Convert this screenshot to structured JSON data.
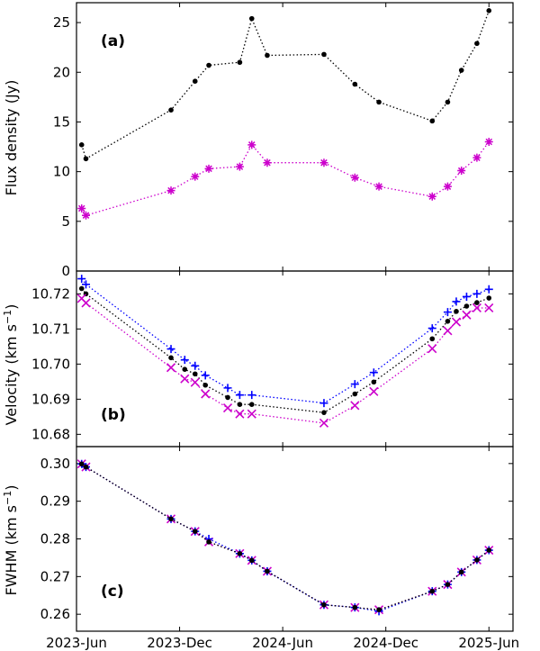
{
  "chart_data": [
    {
      "panel": "a",
      "type": "line",
      "tag": "(a)",
      "ylabel": "Flux density (Jy)",
      "ylim": [
        0,
        27
      ],
      "yticks": [
        0,
        5,
        10,
        15,
        20,
        25
      ],
      "ytick_labels": [
        "0",
        "5",
        "10",
        "15",
        "20",
        "25"
      ],
      "x_month": [
        0.3,
        0.55,
        5.5,
        6.9,
        7.7,
        9.5,
        10.2,
        11.1,
        14.4,
        16.2,
        17.6,
        20.7,
        21.6,
        22.4,
        23.3,
        24.0
      ],
      "series": [
        {
          "name": "black",
          "marker": "dot",
          "color": "#000000",
          "values": [
            12.7,
            11.3,
            16.2,
            19.1,
            20.7,
            21.0,
            25.4,
            21.7,
            21.8,
            18.8,
            17.0,
            15.1,
            17.0,
            20.2,
            22.9,
            26.2
          ]
        },
        {
          "name": "magenta",
          "marker": "star",
          "color": "#cc00cc",
          "values": [
            6.3,
            5.6,
            8.1,
            9.5,
            10.3,
            10.5,
            12.7,
            10.9,
            10.9,
            9.4,
            8.5,
            7.5,
            8.5,
            10.1,
            11.4,
            13.0
          ]
        }
      ]
    },
    {
      "panel": "b",
      "type": "line",
      "tag": "(b)",
      "ylabel": "Velocity (km s",
      "ylabel_sup": "−1",
      "ylabel_end": ")",
      "ylim": [
        10.6765,
        10.7265
      ],
      "yticks": [
        10.68,
        10.69,
        10.7,
        10.71,
        10.72
      ],
      "ytick_labels": [
        "10.68",
        "10.69",
        "10.70",
        "10.71",
        "10.72"
      ],
      "x_month": [
        0.3,
        0.55,
        5.5,
        6.3,
        6.9,
        7.5,
        8.8,
        9.5,
        10.2,
        14.4,
        16.2,
        17.3,
        20.7,
        21.6,
        22.1,
        22.7,
        23.3,
        24.0
      ],
      "series": [
        {
          "name": "blue",
          "marker": "plus",
          "color": "#0000ff",
          "values": [
            10.7243,
            10.7227,
            10.7043,
            10.7012,
            10.6995,
            10.6968,
            10.6932,
            10.6912,
            10.6912,
            10.6889,
            10.6943,
            10.6976,
            10.7102,
            10.7148,
            10.7178,
            10.7192,
            10.72,
            10.7213
          ]
        },
        {
          "name": "black",
          "marker": "dot",
          "color": "#000000",
          "values": [
            10.7215,
            10.72,
            10.7018,
            10.6985,
            10.6972,
            10.694,
            10.6905,
            10.6885,
            10.6885,
            10.6862,
            10.6915,
            10.6949,
            10.7072,
            10.7122,
            10.715,
            10.7165,
            10.7175,
            10.7188
          ]
        },
        {
          "name": "magenta",
          "marker": "cross",
          "color": "#cc00cc",
          "values": [
            10.7187,
            10.7174,
            10.699,
            10.6958,
            10.6948,
            10.6915,
            10.6875,
            10.6858,
            10.6858,
            10.6832,
            10.6882,
            10.6922,
            10.7044,
            10.7095,
            10.712,
            10.714,
            10.716,
            10.716
          ]
        }
      ]
    },
    {
      "panel": "c",
      "type": "line",
      "tag": "(c)",
      "ylabel": "FWHM (km s",
      "ylabel_sup": "−1",
      "ylabel_end": ")",
      "xlabel": "",
      "xlim": [
        0,
        25.4
      ],
      "xticks_month": [
        0,
        6,
        12,
        18,
        24
      ],
      "xtick_labels": [
        "2023-Jun",
        "2023-Dec",
        "2024-Jun",
        "2024-Dec",
        "2025-Jun"
      ],
      "ylim": [
        0.2555,
        0.3045
      ],
      "yticks": [
        0.26,
        0.27,
        0.28,
        0.29,
        0.3
      ],
      "ytick_labels": [
        "0.26",
        "0.27",
        "0.28",
        "0.29",
        "0.30"
      ],
      "x_month": [
        0.3,
        0.55,
        5.5,
        6.9,
        7.7,
        9.5,
        10.2,
        11.1,
        14.4,
        16.2,
        17.6,
        20.7,
        21.6,
        22.4,
        23.3,
        24.0
      ],
      "series": [
        {
          "name": "magenta",
          "marker": "cross",
          "color": "#cc00cc",
          "values": [
            0.2999,
            0.2991,
            0.2853,
            0.282,
            0.2792,
            0.2761,
            0.2743,
            0.2714,
            0.2625,
            0.2618,
            0.2612,
            0.2661,
            0.2679,
            0.2712,
            0.2744,
            0.277
          ]
        },
        {
          "name": "blue",
          "marker": "plus",
          "color": "#0000ff",
          "values": [
            0.2999,
            0.2991,
            0.2853,
            0.282,
            0.28,
            0.2761,
            0.2743,
            0.2714,
            0.2625,
            0.2618,
            0.2608,
            0.2661,
            0.2679,
            0.2712,
            0.2744,
            0.277
          ]
        },
        {
          "name": "black",
          "marker": "dot",
          "color": "#000000",
          "values": [
            0.2999,
            0.2991,
            0.2853,
            0.282,
            0.2792,
            0.2761,
            0.2743,
            0.2714,
            0.2625,
            0.2618,
            0.2612,
            0.2661,
            0.2679,
            0.2712,
            0.2744,
            0.277
          ]
        }
      ]
    }
  ]
}
